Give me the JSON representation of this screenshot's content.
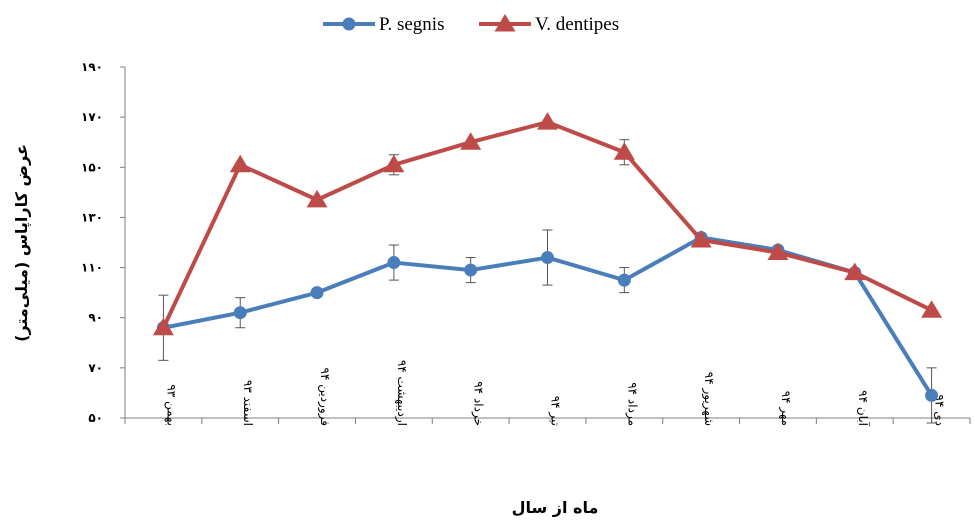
{
  "chart_data": {
    "type": "line",
    "xlabel": "ماه از سال",
    "ylabel": "عرض کاراپاس (میلی‌متر)",
    "ylim": [
      50,
      190
    ],
    "yticks": [
      50,
      70,
      90,
      110,
      130,
      150,
      170,
      190
    ],
    "ytick_labels": [
      "۵۰",
      "۷۰",
      "۹۰",
      "۱۱۰",
      "۱۳۰",
      "۱۵۰",
      "۱۷۰",
      "۱۹۰"
    ],
    "categories": [
      "بهمن ۹۳",
      "اسفند ۹۳",
      "فروردین ۹۴",
      "اردیبهشت ۹۴",
      "خرداد ۹۴",
      "تیر ۹۴",
      "مرداد ۹۴",
      "شهریور ۹۴",
      "مهر ۹۴",
      "آبان ۹۴",
      "دی ۹۴"
    ],
    "legend_position": "top-center",
    "grid": false,
    "series": [
      {
        "name": "P. segnis",
        "color": "#4a7ebb",
        "marker": "circle",
        "values": [
          86,
          92,
          100,
          112,
          109,
          114,
          105,
          122,
          117,
          108,
          59
        ],
        "errors": [
          13,
          6,
          0,
          7,
          5,
          11,
          5,
          0,
          0,
          0,
          11
        ]
      },
      {
        "name": "V. dentipes",
        "color": "#be4b48",
        "marker": "triangle",
        "values": [
          86,
          151,
          137,
          151,
          160,
          168,
          156,
          121,
          116,
          108,
          93
        ],
        "errors": [
          0,
          0,
          0,
          4,
          0,
          0,
          5,
          0,
          0,
          0,
          0
        ]
      }
    ]
  }
}
